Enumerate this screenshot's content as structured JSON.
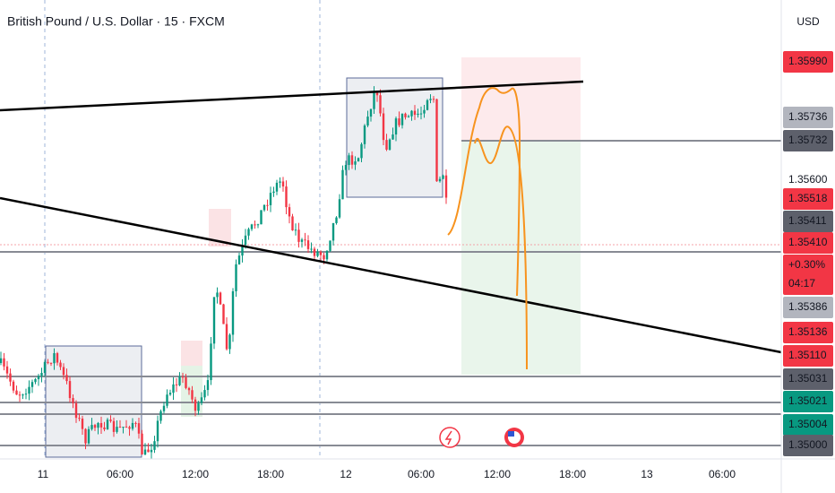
{
  "header": {
    "title": "British Pound / U.S. Dollar · 15 · FXCM",
    "currency": "USD"
  },
  "price_labels": [
    {
      "text": "1.35990",
      "color": "#f23645"
    },
    {
      "text": "1.35736",
      "color": "#b2b5be"
    },
    {
      "text": "1.35732",
      "color": "#5d606b"
    },
    {
      "text": "1.35600",
      "color": "#ffffff"
    },
    {
      "text": "1.35518",
      "color": "#f23645"
    },
    {
      "text": "1.35411",
      "color": "#5d606b"
    },
    {
      "text": "1.35410",
      "color": "#f23645"
    },
    {
      "text": "+0.30%",
      "color": "#f23645"
    },
    {
      "text": "04:17",
      "color": "#f23645"
    },
    {
      "text": "1.35386",
      "color": "#b2b5be"
    },
    {
      "text": "1.35136",
      "color": "#f23645"
    },
    {
      "text": "1.35110",
      "color": "#f23645"
    },
    {
      "text": "1.35031",
      "color": "#5d606b"
    },
    {
      "text": "1.35021",
      "color": "#089981"
    },
    {
      "text": "1.35004",
      "color": "#089981"
    },
    {
      "text": "1.35000",
      "color": "#5d606b"
    }
  ],
  "time_labels": [
    "11",
    "06:00",
    "12:00",
    "18:00",
    "12",
    "06:00",
    "12:00",
    "18:00",
    "13",
    "06:00"
  ]
}
